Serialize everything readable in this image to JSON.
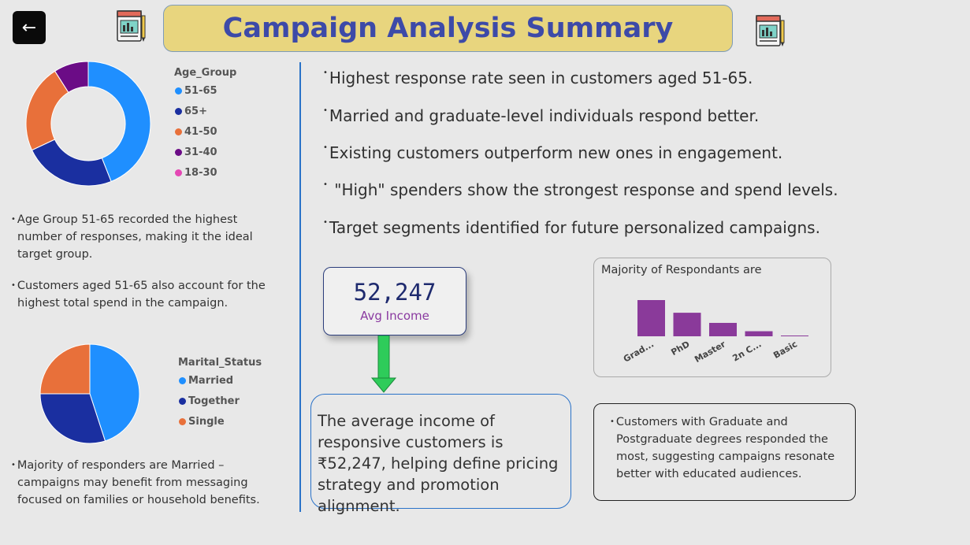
{
  "header": {
    "back_icon": "arrow-left-icon",
    "report_icon": "report-icon",
    "title": "Campaign Analysis Summary"
  },
  "age_group": {
    "legend_title": "Age_Group",
    "items": [
      {
        "label": "51-65",
        "color": "#1f8fff",
        "value": 44
      },
      {
        "label": "65+",
        "color": "#1a2fa0",
        "value": 24
      },
      {
        "label": "41-50",
        "color": "#e8703a",
        "value": 23
      },
      {
        "label": "31-40",
        "color": "#6b0c86",
        "value": 9
      },
      {
        "label": "18-30",
        "color": "#e448b4",
        "value": 0
      }
    ],
    "notes": [
      "Age Group 51-65 recorded the highest number of responses, making it the ideal target group.",
      "Customers aged 51-65 also account for the highest total spend in the campaign."
    ]
  },
  "marital": {
    "legend_title": "Marital_Status",
    "items": [
      {
        "label": "Married",
        "color": "#1f8fff",
        "value": 45
      },
      {
        "label": "Together",
        "color": "#1a2fa0",
        "value": 30
      },
      {
        "label": "Single",
        "color": "#e8703a",
        "value": 25
      }
    ],
    "note": "Majority of responders are Married – campaigns may benefit from messaging focused on families or household benefits."
  },
  "insights": [
    "Highest response rate seen in customers aged 51-65.",
    "Married and graduate-level individuals respond better.",
    "Existing customers outperform new ones in engagement.",
    " \"High\" spenders show the strongest response and spend levels.",
    "Target segments identified for future personalized campaigns."
  ],
  "kpi": {
    "value": "52,247",
    "label": "Avg Income"
  },
  "income_text": "The average income of responsive customers is ₹52,247, helping define pricing strategy and promotion alignment.",
  "education": {
    "title": "Majority of Respondants are",
    "note": "Customers with Graduate and Postgraduate degrees responded the most, suggesting campaigns resonate better with educated audiences.",
    "bar_color": "#8a3a9a"
  },
  "chart_data": [
    {
      "type": "pie",
      "title": "Age_Group",
      "categories": [
        "51-65",
        "65+",
        "41-50",
        "31-40",
        "18-30"
      ],
      "values": [
        44,
        24,
        23,
        9,
        0
      ]
    },
    {
      "type": "pie",
      "title": "Marital_Status",
      "categories": [
        "Married",
        "Together",
        "Single"
      ],
      "values": [
        45,
        30,
        25
      ]
    },
    {
      "type": "bar",
      "title": "Majority of Respondants are",
      "categories": [
        "Grad...",
        "PhD",
        "Master",
        "2n C...",
        "Basic"
      ],
      "values": [
        100,
        65,
        37,
        14,
        1
      ]
    }
  ]
}
